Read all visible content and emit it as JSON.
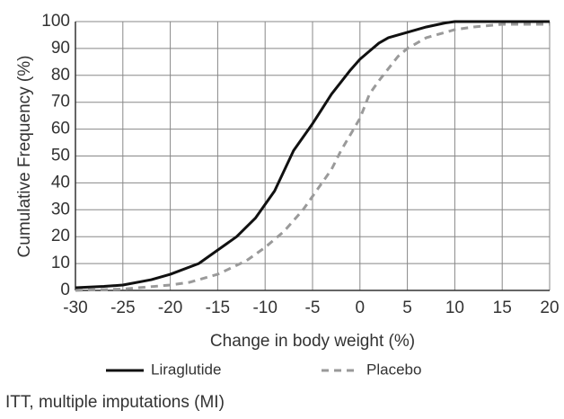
{
  "chart_data": {
    "type": "line",
    "xlabel": "Change in body weight (%)",
    "ylabel": "Cumulative Frequency (%)",
    "footnote": "ITT, multiple imputations (MI)",
    "xlim": [
      -30,
      20
    ],
    "xticks": [
      -30,
      -25,
      -20,
      -15,
      -10,
      -5,
      0,
      5,
      10,
      15,
      20
    ],
    "ylim": [
      0,
      100
    ],
    "yticks": [
      0,
      10,
      20,
      30,
      40,
      50,
      60,
      70,
      80,
      90,
      100
    ],
    "grid": true,
    "legend": "bottom",
    "series": [
      {
        "name": "Liraglutide",
        "color": "#111111",
        "dash": false,
        "x": [
          -30,
          -27,
          -25,
          -22,
          -20,
          -17,
          -15,
          -13,
          -11,
          -9,
          -7,
          -5,
          -3,
          -1,
          0,
          1,
          2,
          3,
          5,
          7,
          9,
          10,
          15,
          20
        ],
        "values": [
          1,
          1.5,
          2,
          4,
          6,
          10,
          15,
          20,
          27,
          37,
          52,
          62,
          73,
          82,
          86,
          89,
          92,
          94,
          96,
          98,
          99.5,
          100,
          100,
          100
        ]
      },
      {
        "name": "Placebo",
        "color": "#9a9a9a",
        "dash": true,
        "x": [
          -30,
          -25,
          -20,
          -18,
          -15,
          -12,
          -10,
          -8,
          -6,
          -5,
          -3,
          -2,
          -1,
          0,
          1,
          2,
          4,
          5,
          7,
          9,
          10,
          12,
          15,
          20
        ],
        "values": [
          0,
          0.5,
          2,
          3,
          6,
          11,
          16,
          22,
          30,
          35,
          45,
          52,
          58,
          64,
          73,
          78,
          87,
          90,
          94,
          96,
          97,
          98,
          99,
          99
        ]
      }
    ]
  }
}
